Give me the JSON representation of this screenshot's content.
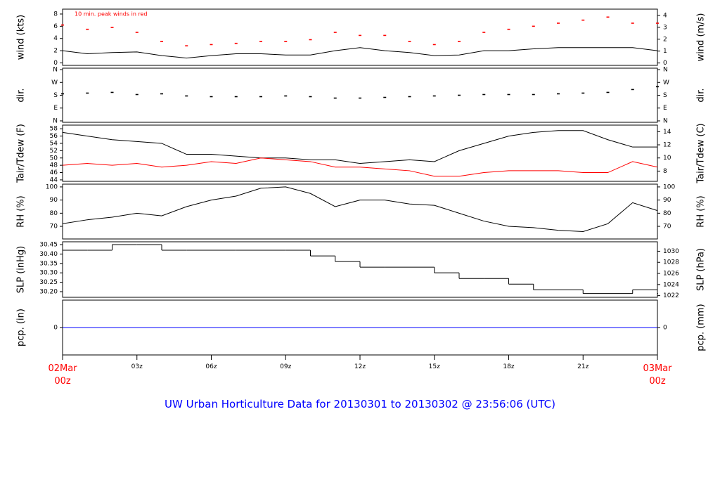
{
  "x_axis": {
    "xlim": [
      0,
      24
    ],
    "xticks": [
      {
        "value": 0,
        "label": "02Mar\n00z"
      },
      {
        "value": 3,
        "label": "03z"
      },
      {
        "value": 6,
        "label": "06z"
      },
      {
        "value": 9,
        "label": "09z"
      },
      {
        "value": 12,
        "label": "12z"
      },
      {
        "value": 15,
        "label": "15z"
      },
      {
        "value": 18,
        "label": "18z"
      },
      {
        "value": 21,
        "label": "21z"
      },
      {
        "value": 24,
        "label": "03Mar\n00z"
      }
    ],
    "edge_label_color": "#ff0000",
    "title": "UW Urban Horticulture Data for 20130301  to  20130302 @ 23:56:06  (UTC)"
  },
  "chart_data": [
    {
      "type": "line",
      "ylabel": "wind (kts)",
      "y2label": "wind (m/s)",
      "annotation": "10 min. peak winds in red",
      "ylim": [
        -0.4,
        8.8
      ],
      "yticks": [
        0,
        2,
        4,
        6,
        8
      ],
      "y2lim": [
        -0.2,
        4.53
      ],
      "y2ticks": [
        0,
        1,
        2,
        3,
        4
      ],
      "x": [
        0,
        1,
        2,
        3,
        4,
        5,
        6,
        7,
        8,
        9,
        10,
        11,
        12,
        13,
        14,
        15,
        16,
        17,
        18,
        19,
        20,
        21,
        22,
        23,
        24
      ],
      "series": [
        {
          "color": "#000000",
          "style": "line",
          "values": [
            2.0,
            1.5,
            1.7,
            1.8,
            1.2,
            0.8,
            1.2,
            1.5,
            1.5,
            1.3,
            1.3,
            2.0,
            2.5,
            2.0,
            1.7,
            1.2,
            1.3,
            2.0,
            2.0,
            2.3,
            2.5,
            2.5,
            2.5,
            2.5,
            2.0
          ]
        },
        {
          "color": "#ff0000",
          "style": "points",
          "values": [
            6.2,
            5.5,
            5.8,
            5.0,
            3.5,
            2.8,
            3.0,
            3.2,
            3.5,
            3.5,
            3.8,
            5.0,
            4.5,
            4.5,
            3.5,
            3.0,
            3.5,
            5.0,
            5.5,
            6.0,
            6.5,
            7.0,
            7.5,
            6.5,
            6.5
          ]
        }
      ]
    },
    {
      "type": "scatter",
      "ylabel": "dir.",
      "y2label": "dir.",
      "ylim": [
        -10,
        370
      ],
      "yticks": [
        {
          "value": 0,
          "label": "N"
        },
        {
          "value": 90,
          "label": "E"
        },
        {
          "value": 180,
          "label": "S"
        },
        {
          "value": 270,
          "label": "W"
        },
        {
          "value": 360,
          "label": "N"
        }
      ],
      "y2lim": [
        -10,
        370
      ],
      "y2ticks": [
        {
          "value": 0,
          "label": "N"
        },
        {
          "value": 90,
          "label": "E"
        },
        {
          "value": 180,
          "label": "S"
        },
        {
          "value": 270,
          "label": "W"
        },
        {
          "value": 360,
          "label": "N"
        }
      ],
      "x": [
        0,
        1,
        2,
        3,
        4,
        5,
        6,
        7,
        8,
        9,
        10,
        11,
        12,
        13,
        14,
        15,
        16,
        17,
        18,
        19,
        20,
        21,
        22,
        23,
        24
      ],
      "series": [
        {
          "color": "#000000",
          "style": "points",
          "values": [
            190,
            195,
            200,
            185,
            190,
            175,
            170,
            170,
            170,
            175,
            170,
            160,
            160,
            165,
            170,
            175,
            180,
            185,
            185,
            185,
            190,
            195,
            200,
            220,
            240
          ]
        }
      ]
    },
    {
      "type": "line",
      "ylabel": "Tair/Tdew (F)",
      "y2label": "Tair/Tdew (C)",
      "ylim": [
        43.6,
        59
      ],
      "yticks": [
        44,
        46,
        48,
        50,
        52,
        54,
        56,
        58
      ],
      "y2lim": [
        6.44,
        15
      ],
      "y2ticks": [
        8,
        10,
        12,
        14
      ],
      "x": [
        0,
        1,
        2,
        3,
        4,
        5,
        6,
        7,
        8,
        9,
        10,
        11,
        12,
        13,
        14,
        15,
        16,
        17,
        18,
        19,
        20,
        21,
        22,
        23,
        24
      ],
      "series": [
        {
          "color": "#000000",
          "style": "line",
          "values": [
            57,
            56,
            55,
            54.5,
            54,
            51,
            51,
            50.5,
            50,
            50,
            49.5,
            49.5,
            48.5,
            49,
            49.5,
            49,
            52,
            54,
            56,
            57,
            57.5,
            57.5,
            55,
            53,
            53
          ]
        },
        {
          "color": "#ff0000",
          "style": "line",
          "values": [
            48,
            48.5,
            48,
            48.5,
            47.5,
            48,
            49,
            48.5,
            50,
            49.5,
            49,
            47.5,
            47.5,
            47,
            46.5,
            45,
            45,
            46,
            46.5,
            46.5,
            46.5,
            46,
            46,
            49,
            47.5
          ]
        }
      ]
    },
    {
      "type": "line",
      "ylabel": "RH (%)",
      "y2label": "RH (%)",
      "ylim": [
        60.4,
        102.1
      ],
      "yticks": [
        70,
        80,
        90,
        100
      ],
      "y2lim": [
        60.4,
        102.1
      ],
      "y2ticks": [
        70,
        80,
        90,
        100
      ],
      "x": [
        0,
        1,
        2,
        3,
        4,
        5,
        6,
        7,
        8,
        9,
        10,
        11,
        12,
        13,
        14,
        15,
        16,
        17,
        18,
        19,
        20,
        21,
        22,
        23,
        24
      ],
      "series": [
        {
          "color": "#000000",
          "style": "line",
          "values": [
            72,
            75,
            77,
            80,
            78,
            85,
            90,
            93,
            99,
            100,
            95,
            85,
            90,
            90,
            87,
            86,
            80,
            74,
            70,
            69,
            67,
            66,
            72,
            88,
            82
          ]
        }
      ]
    },
    {
      "type": "line",
      "ylabel": "SLP (inHg)",
      "y2label": "SLP (hPa)",
      "ylim": [
        30.17,
        30.465
      ],
      "yticks": [
        {
          "value": 30.2,
          "label": "30.20"
        },
        {
          "value": 30.25,
          "label": "30.25"
        },
        {
          "value": 30.3,
          "label": "30.30"
        },
        {
          "value": 30.35,
          "label": "30.35"
        },
        {
          "value": 30.4,
          "label": "30.40"
        },
        {
          "value": 30.45,
          "label": "30.45"
        }
      ],
      "y2lim": [
        1021.7,
        1031.7
      ],
      "y2ticks": [
        1022,
        1024,
        1026,
        1028,
        1030
      ],
      "x": [
        0,
        1,
        2,
        3,
        4,
        5,
        6,
        7,
        8,
        9,
        10,
        11,
        12,
        13,
        14,
        15,
        16,
        17,
        18,
        19,
        20,
        21,
        22,
        23,
        24
      ],
      "series": [
        {
          "color": "#000000",
          "style": "step",
          "values": [
            30.42,
            30.42,
            30.45,
            30.45,
            30.42,
            30.42,
            30.42,
            30.42,
            30.42,
            30.42,
            30.39,
            30.36,
            30.33,
            30.33,
            30.33,
            30.3,
            30.27,
            30.27,
            30.24,
            30.21,
            30.21,
            30.19,
            30.19,
            30.21,
            30.19
          ]
        }
      ]
    },
    {
      "type": "line",
      "ylabel": "pcp. (in)",
      "y2label": "pcp. (mm)",
      "ylim": [
        -1,
        1
      ],
      "yticks": [
        0
      ],
      "y2lim": [
        -1,
        1
      ],
      "y2ticks": [
        0
      ],
      "x": [
        0,
        1,
        2,
        3,
        4,
        5,
        6,
        7,
        8,
        9,
        10,
        11,
        12,
        13,
        14,
        15,
        16,
        17,
        18,
        19,
        20,
        21,
        22,
        23,
        24
      ],
      "series": [
        {
          "color": "#0000ff",
          "style": "line",
          "values": [
            0,
            0,
            0,
            0,
            0,
            0,
            0,
            0,
            0,
            0,
            0,
            0,
            0,
            0,
            0,
            0,
            0,
            0,
            0,
            0,
            0,
            0,
            0,
            0,
            0
          ]
        }
      ]
    }
  ]
}
